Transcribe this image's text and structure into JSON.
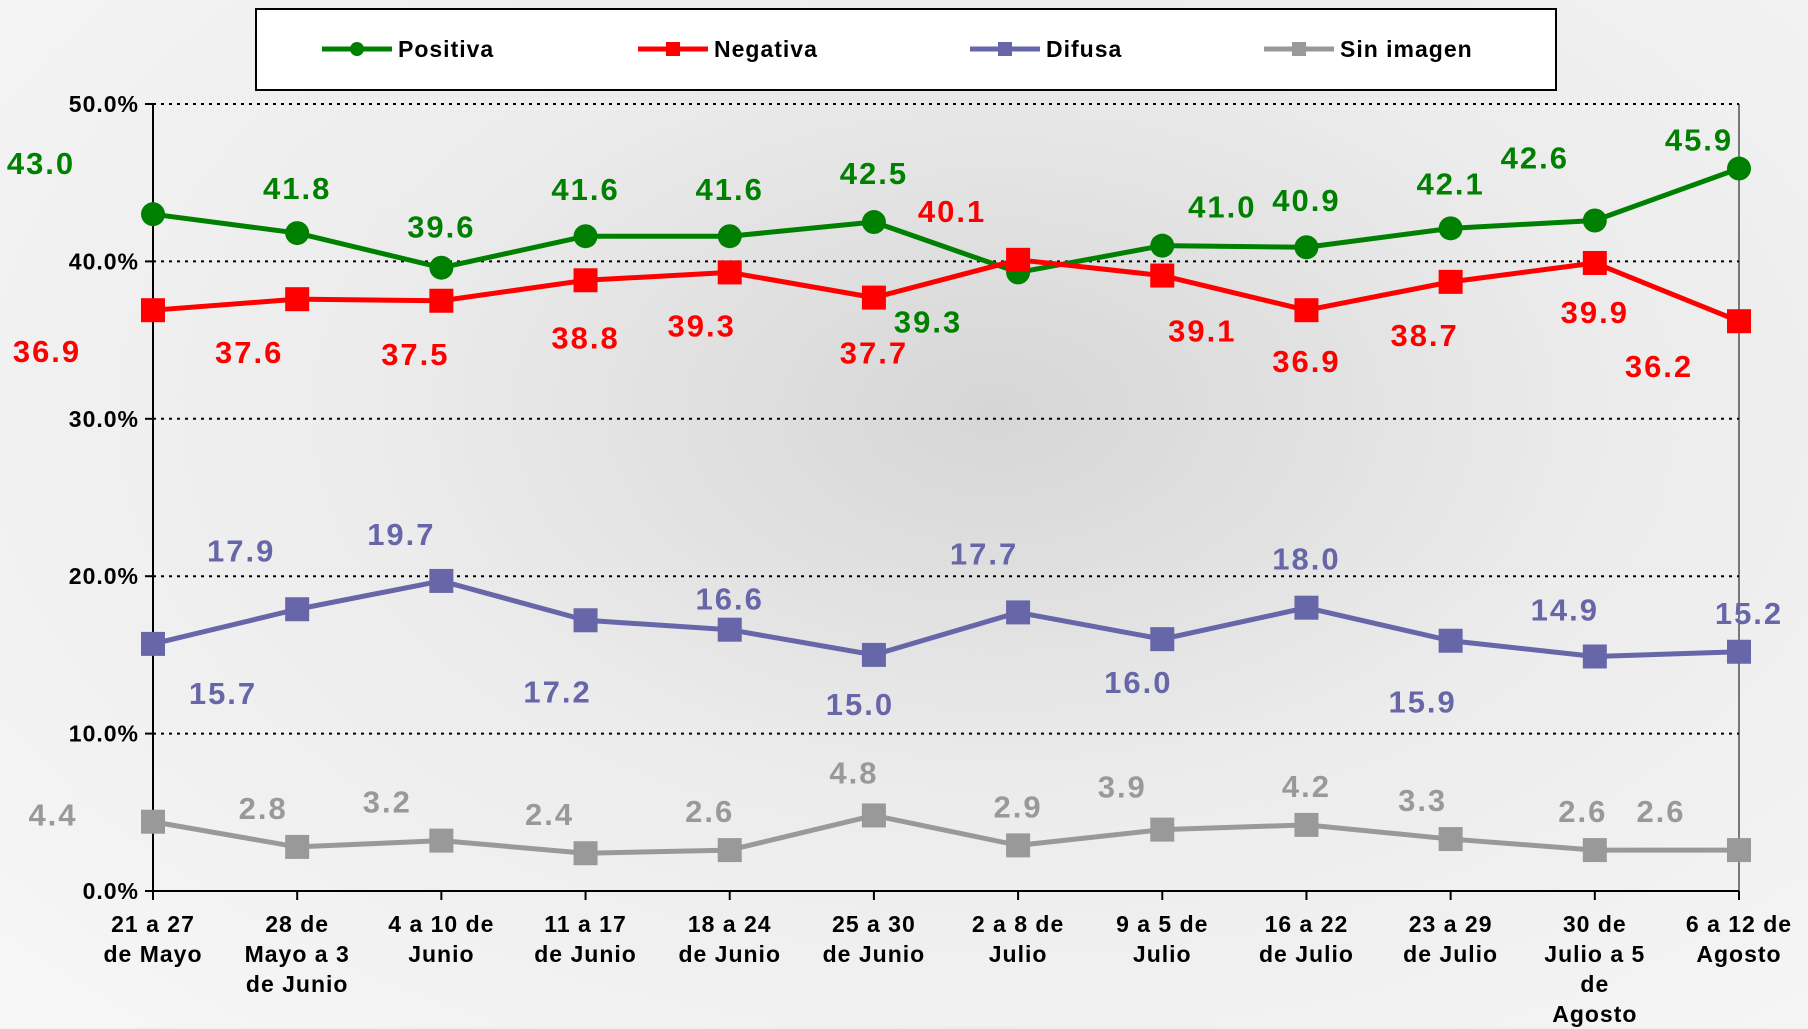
{
  "chart_data": {
    "type": "line",
    "categories": [
      "21 a 27\nde Mayo",
      "28 de\nMayo a 3\nde Junio",
      "4 a 10 de\nJunio",
      "11 a 17\nde Junio",
      "18 a 24\nde Junio",
      "25 a 30\nde Junio",
      "2 a 8 de\nJulio",
      "9 a 5 de\nJulio",
      "16 a 22\nde Julio",
      "23 a 29\nde Julio",
      "30 de\nJulio a 5\nde\nAgosto",
      "6 a 12 de\nAgosto"
    ],
    "series": [
      {
        "name": "Positiva",
        "color": "#008000",
        "marker": "circle",
        "values": [
          43.0,
          41.8,
          39.6,
          41.6,
          41.6,
          42.5,
          39.3,
          41.0,
          40.9,
          42.1,
          42.6,
          45.9
        ],
        "value_labels": [
          "43.0",
          "41.8",
          "39.6",
          "41.6",
          "41.6",
          "42.5",
          "39.3",
          "41.0",
          "40.9",
          "42.1",
          "42.6",
          "45.9"
        ]
      },
      {
        "name": "Negativa",
        "color": "#ff0000",
        "marker": "square",
        "values": [
          36.9,
          37.6,
          37.5,
          38.8,
          39.3,
          37.7,
          40.1,
          39.1,
          36.9,
          38.7,
          39.9,
          36.2
        ],
        "value_labels": [
          "36.9",
          "37.6",
          "37.5",
          "38.8",
          "39.3",
          "37.7",
          "40.1",
          "39.1",
          "36.9",
          "38.7",
          "39.9",
          "36.2"
        ]
      },
      {
        "name": "Difusa",
        "color": "#6666a8",
        "marker": "square",
        "values": [
          15.7,
          17.9,
          19.7,
          17.2,
          16.6,
          15.0,
          17.7,
          16.0,
          18.0,
          15.9,
          14.9,
          15.2
        ],
        "value_labels": [
          "15.7",
          "17.9",
          "19.7",
          "17.2",
          "16.6",
          "15.0",
          "17.7",
          "16.0",
          "18.0",
          "15.9",
          "14.9",
          "15.2"
        ]
      },
      {
        "name": "Sin imagen",
        "color": "#999999",
        "marker": "square",
        "values": [
          4.4,
          2.8,
          3.2,
          2.4,
          2.6,
          4.8,
          2.9,
          3.9,
          4.2,
          3.3,
          2.6,
          2.6
        ],
        "value_labels": [
          "4.4",
          "2.8",
          "3.2",
          "2.4",
          "2.6",
          "4.8",
          "2.9",
          "3.9",
          "4.2",
          "3.3",
          "2.6",
          "2.6"
        ]
      }
    ],
    "ylim": [
      0,
      50
    ],
    "yticks": [
      {
        "value": 0,
        "label": "0.0%"
      },
      {
        "value": 10,
        "label": "10.0%"
      },
      {
        "value": 20,
        "label": "20.0%"
      },
      {
        "value": 30,
        "label": "30.0%"
      },
      {
        "value": 40,
        "label": "40.0%"
      },
      {
        "value": 50,
        "label": "50.0%"
      }
    ],
    "grid": true,
    "legend": "top"
  }
}
